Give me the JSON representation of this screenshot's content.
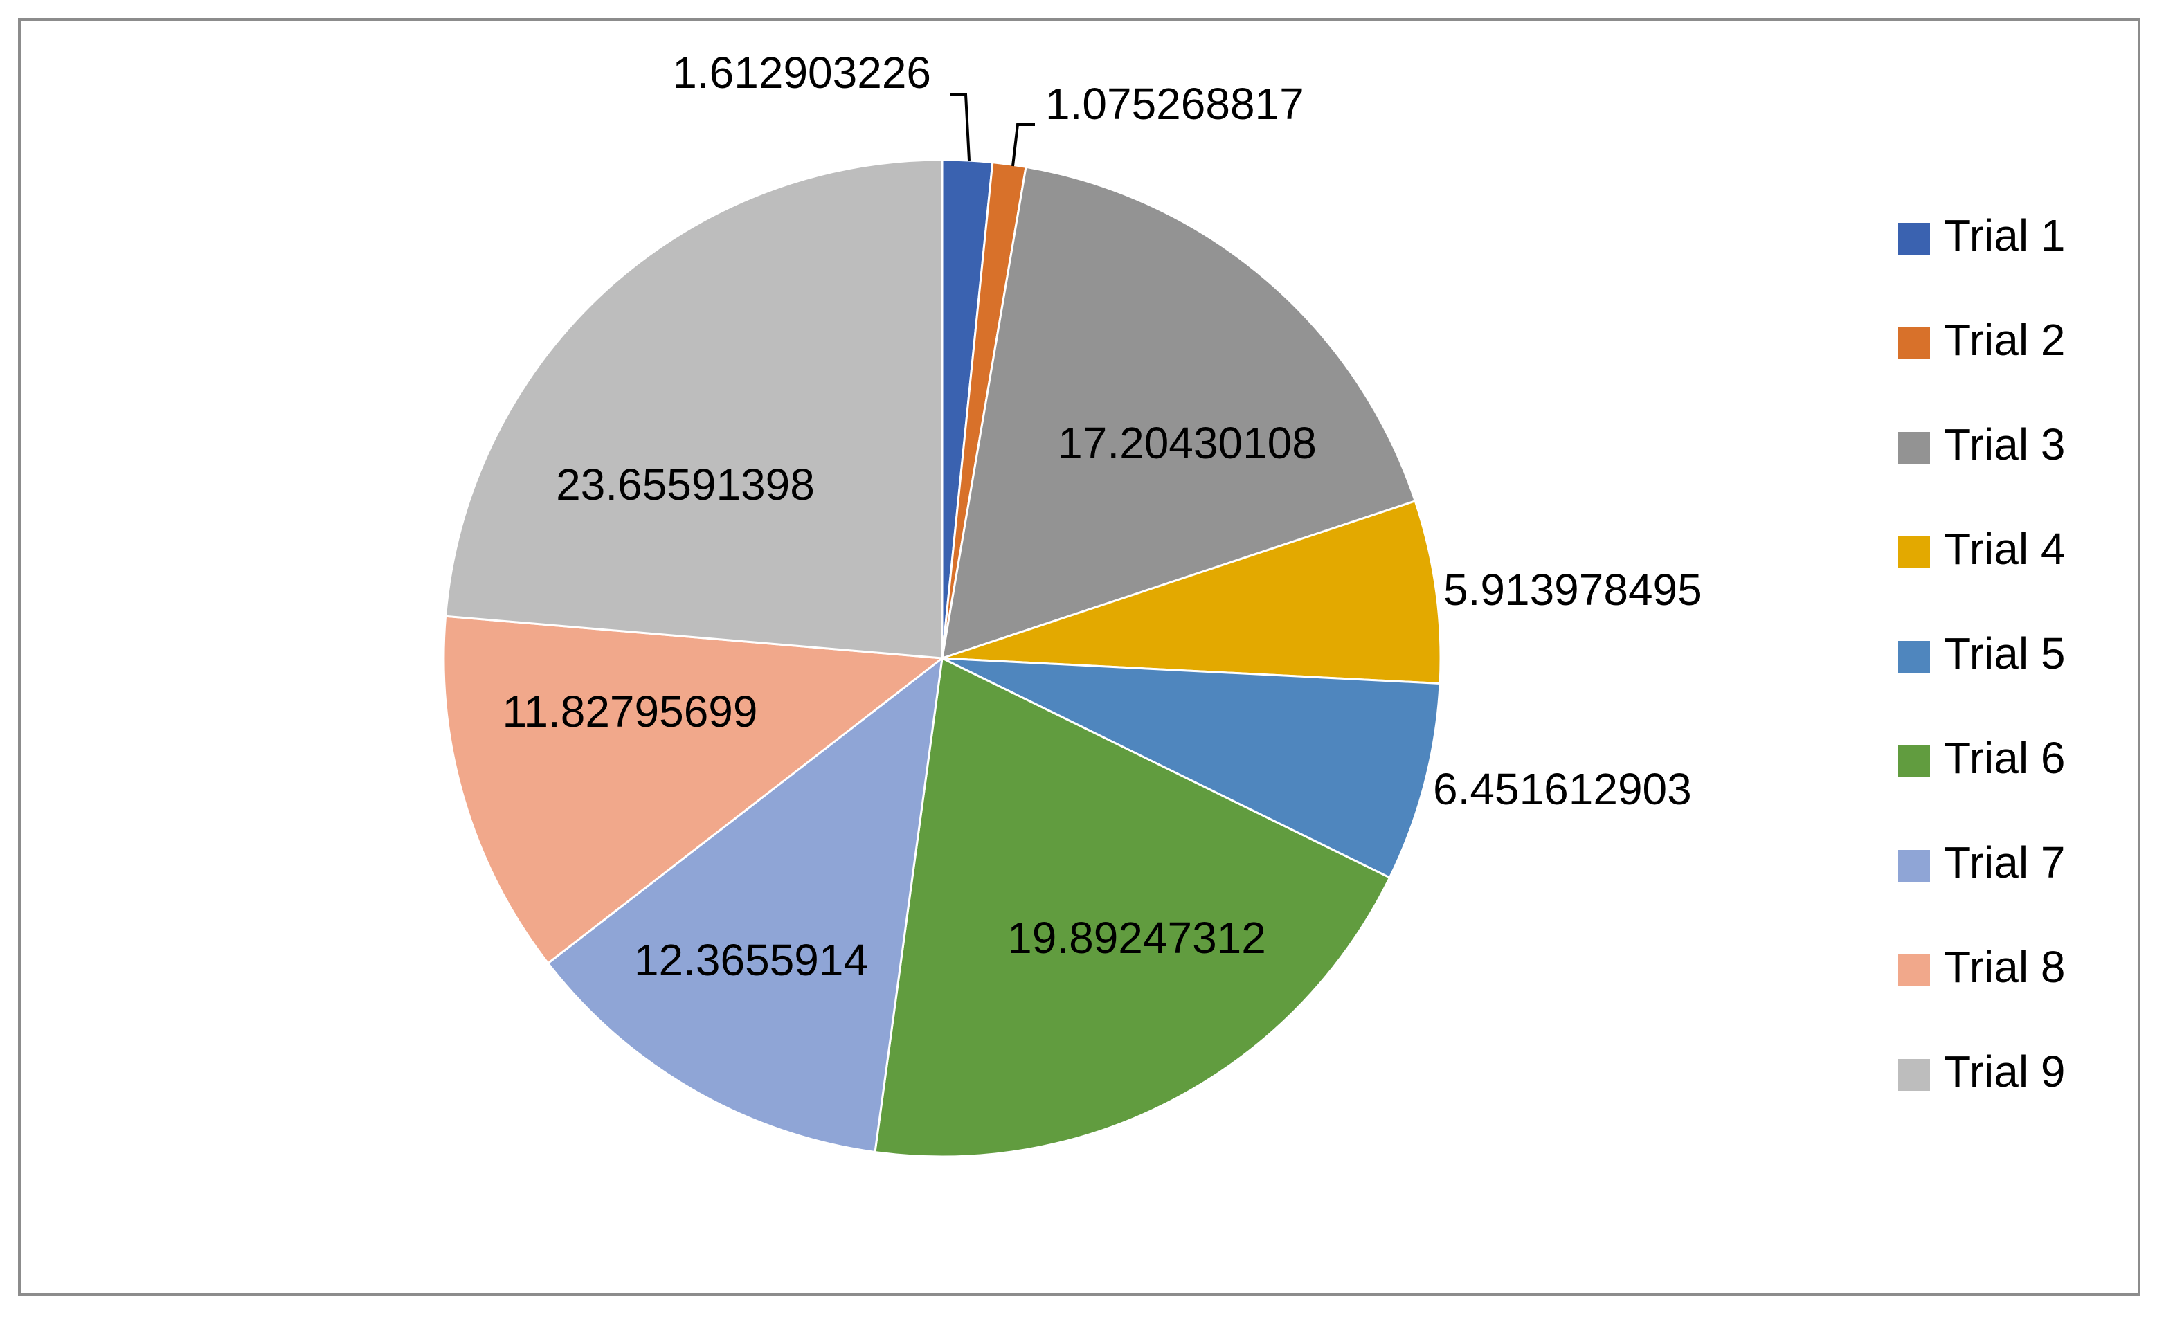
{
  "chart_data": {
    "type": "pie",
    "title": "",
    "legend_position": "right",
    "start_angle_deg": 0,
    "direction": "clockwise",
    "categories": [
      "Trial 1",
      "Trial 2",
      "Trial 3",
      "Trial 4",
      "Trial 5",
      "Trial 6",
      "Trial 7",
      "Trial 8",
      "Trial 9"
    ],
    "values": [
      1.612903226,
      1.075268817,
      17.20430108,
      5.913978495,
      6.451612903,
      19.89247312,
      12.3655914,
      11.82795699,
      23.65591398
    ],
    "labels": [
      "1.612903226",
      "1.075268817",
      "17.20430108",
      "5.913978495",
      "6.451612903",
      "19.89247312",
      "12.3655914",
      "11.82795699",
      "23.65591398"
    ],
    "colors": [
      "#3a62b0",
      "#d8712a",
      "#939393",
      "#e3a900",
      "#4f86be",
      "#619c3f",
      "#8fa5d6",
      "#f1a88b",
      "#bdbdbd"
    ]
  }
}
